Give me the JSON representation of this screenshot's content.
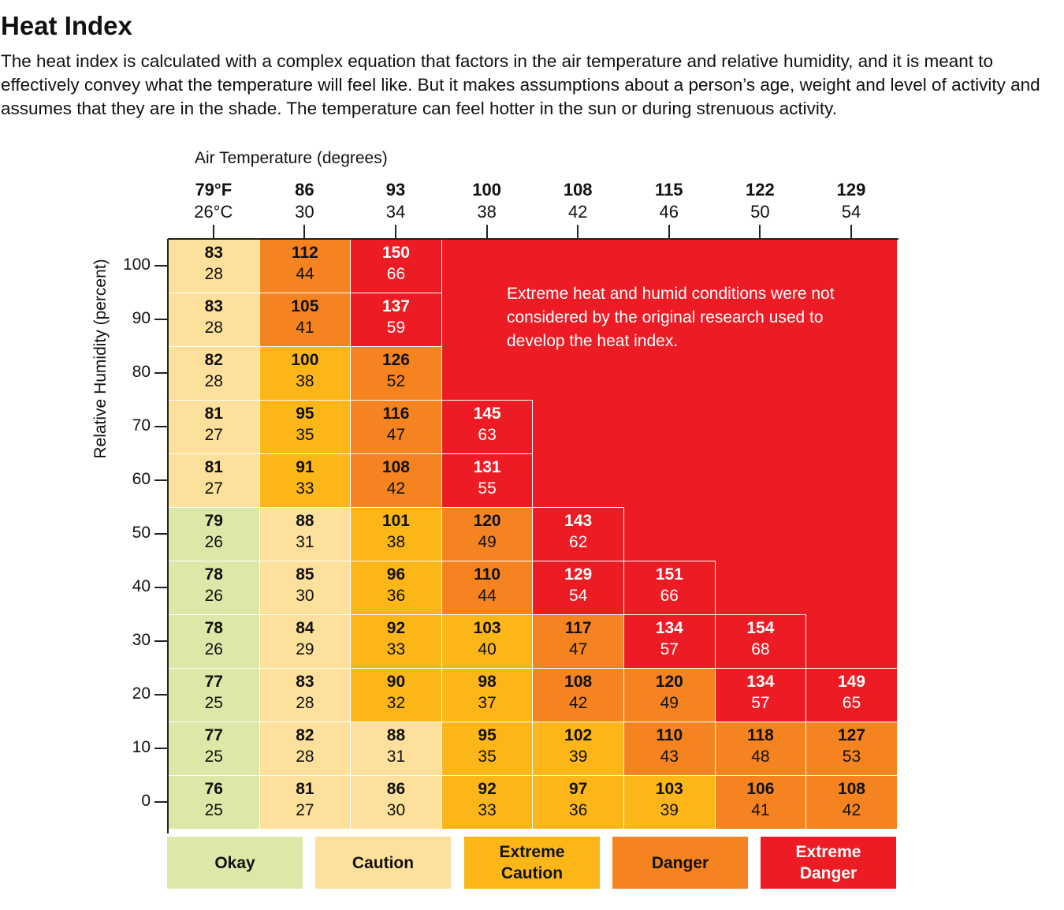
{
  "title": "Heat Index",
  "description": "The heat index is calculated with a complex equation that factors in the air temperature and relative humidity, and it is meant to effectively convey what the temperature will feel like. But it makes assumptions about a person’s age, weight and level of activity and assumes that they are in the shade. The temperature can feel hotter in the sun or during strenuous activity.",
  "chart_data": {
    "type": "heatmap",
    "xlabel": "Air Temperature (degrees)",
    "ylabel": "Relative Humidity (percent)",
    "x_f": [
      "79°F",
      "86",
      "93",
      "100",
      "108",
      "115",
      "122",
      "129"
    ],
    "x_c": [
      "26°C",
      "30",
      "34",
      "38",
      "42",
      "46",
      "50",
      "54"
    ],
    "y": [
      100,
      90,
      80,
      70,
      60,
      50,
      40,
      30,
      20,
      10,
      0
    ],
    "values_f": [
      [
        83,
        112,
        150,
        null,
        null,
        null,
        null,
        null
      ],
      [
        83,
        105,
        137,
        null,
        null,
        null,
        null,
        null
      ],
      [
        82,
        100,
        126,
        null,
        null,
        null,
        null,
        null
      ],
      [
        81,
        95,
        116,
        145,
        null,
        null,
        null,
        null
      ],
      [
        81,
        91,
        108,
        131,
        null,
        null,
        null,
        null
      ],
      [
        79,
        88,
        101,
        120,
        143,
        null,
        null,
        null
      ],
      [
        78,
        85,
        96,
        110,
        129,
        151,
        null,
        null
      ],
      [
        78,
        84,
        92,
        103,
        117,
        134,
        154,
        null
      ],
      [
        77,
        83,
        90,
        98,
        108,
        120,
        134,
        149
      ],
      [
        77,
        82,
        88,
        95,
        102,
        110,
        118,
        127
      ],
      [
        76,
        81,
        86,
        92,
        97,
        103,
        106,
        108
      ]
    ],
    "values_c": [
      [
        28,
        44,
        66,
        null,
        null,
        null,
        null,
        null
      ],
      [
        28,
        41,
        59,
        null,
        null,
        null,
        null,
        null
      ],
      [
        28,
        38,
        52,
        null,
        null,
        null,
        null,
        null
      ],
      [
        27,
        35,
        47,
        63,
        null,
        null,
        null,
        null
      ],
      [
        27,
        33,
        42,
        55,
        null,
        null,
        null,
        null
      ],
      [
        26,
        31,
        38,
        49,
        62,
        null,
        null,
        null
      ],
      [
        26,
        30,
        36,
        44,
        54,
        66,
        null,
        null
      ],
      [
        26,
        29,
        33,
        40,
        47,
        57,
        68,
        null
      ],
      [
        25,
        28,
        32,
        37,
        42,
        49,
        57,
        65
      ],
      [
        25,
        28,
        31,
        35,
        39,
        43,
        48,
        53
      ],
      [
        25,
        27,
        30,
        33,
        36,
        39,
        41,
        42
      ]
    ],
    "categories_grid": [
      [
        "C",
        "D",
        "X",
        "X",
        "X",
        "X",
        "X",
        "X"
      ],
      [
        "C",
        "D",
        "X",
        "X",
        "X",
        "X",
        "X",
        "X"
      ],
      [
        "C",
        "E",
        "D",
        "X",
        "X",
        "X",
        "X",
        "X"
      ],
      [
        "C",
        "E",
        "D",
        "X",
        "X",
        "X",
        "X",
        "X"
      ],
      [
        "C",
        "E",
        "D",
        "X",
        "X",
        "X",
        "X",
        "X"
      ],
      [
        "O",
        "C",
        "E",
        "D",
        "X",
        "X",
        "X",
        "X"
      ],
      [
        "O",
        "C",
        "E",
        "D",
        "X",
        "X",
        "X",
        "X"
      ],
      [
        "O",
        "C",
        "E",
        "E",
        "D",
        "X",
        "X",
        "X"
      ],
      [
        "O",
        "C",
        "E",
        "E",
        "D",
        "D",
        "X",
        "X"
      ],
      [
        "O",
        "C",
        "C",
        "E",
        "E",
        "D",
        "D",
        "D"
      ],
      [
        "O",
        "C",
        "C",
        "E",
        "E",
        "E",
        "D",
        "D"
      ]
    ],
    "legend": [
      {
        "key": "O",
        "label": "Okay",
        "color": "#dce8a8"
      },
      {
        "key": "C",
        "label": "Caution",
        "color": "#fde09b"
      },
      {
        "key": "E",
        "label": "Extreme Caution",
        "color": "#fcb617"
      },
      {
        "key": "D",
        "label": "Danger",
        "color": "#f58320"
      },
      {
        "key": "X",
        "label": "Extreme Danger",
        "color": "#ed1c24"
      }
    ],
    "annotation": "Extreme heat and humid conditions were not considered by the original research used to develop the heat index."
  }
}
